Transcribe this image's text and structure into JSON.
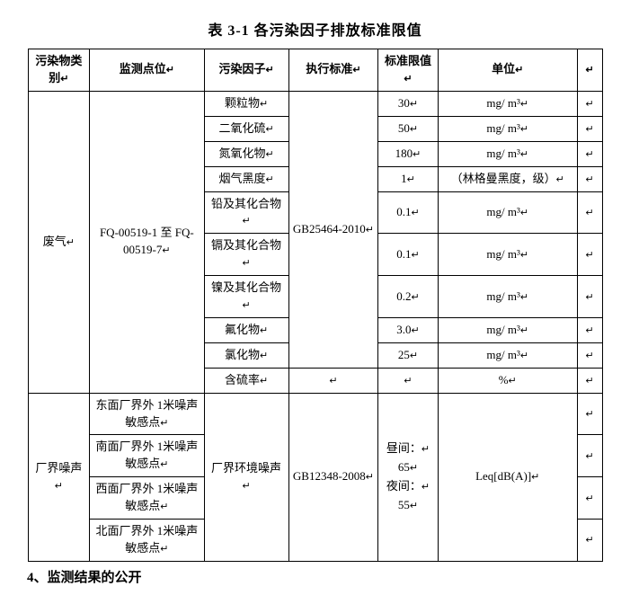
{
  "title": "表 3-1  各污染因子排放标准限值",
  "headers": {
    "c1": "污染物类别",
    "c2": "监测点位",
    "c3": "污染因子",
    "c4": "执行标准",
    "c5": "标准限值",
    "c6": "单位"
  },
  "marker": "↵",
  "cat1": "废气",
  "mon1": "FQ-00519-1 至 FQ-00519-7",
  "std_air": "GB25464-2010",
  "air": {
    "p1": {
      "n": "颗粒物",
      "v": "30",
      "u": "mg/ m³"
    },
    "p2": {
      "n": "二氧化硫",
      "v": "50",
      "u": "mg/ m³"
    },
    "p3": {
      "n": "氮氧化物",
      "v": "180",
      "u": "mg/ m³"
    },
    "p4": {
      "n": "烟气黑度",
      "v": "1",
      "u": "（林格曼黑度，级）"
    },
    "p5": {
      "n": "铅及其化合物",
      "v": "0.1",
      "u": "mg/ m³"
    },
    "p6": {
      "n": "镉及其化合物",
      "v": "0.1",
      "u": "mg/ m³"
    },
    "p7": {
      "n": "镍及其化合物",
      "v": "0.2",
      "u": "mg/ m³"
    },
    "p8": {
      "n": "氟化物",
      "v": "3.0",
      "u": "mg/ m³"
    },
    "p9": {
      "n": "氯化物",
      "v": "25",
      "u": "mg/ m³"
    },
    "p10": {
      "n": "含硫率",
      "v": "",
      "u": "%"
    }
  },
  "cat2": "厂界噪声",
  "noise": {
    "pt1": "东面厂界外 1米噪声敏感点",
    "pt2": "南面厂界外 1米噪声敏感点",
    "pt3": "西面厂界外 1米噪声敏感点",
    "pt4": "北面厂界外 1米噪声敏感点",
    "factor": "厂界环境噪声",
    "std": "GB12348-2008",
    "limit_day_label": "昼间：",
    "limit_day_val": "65",
    "limit_night_label": "夜间：",
    "limit_night_val": "55",
    "unit": "Leq[dB(A)]"
  },
  "footer": "4、监测结果的公开"
}
